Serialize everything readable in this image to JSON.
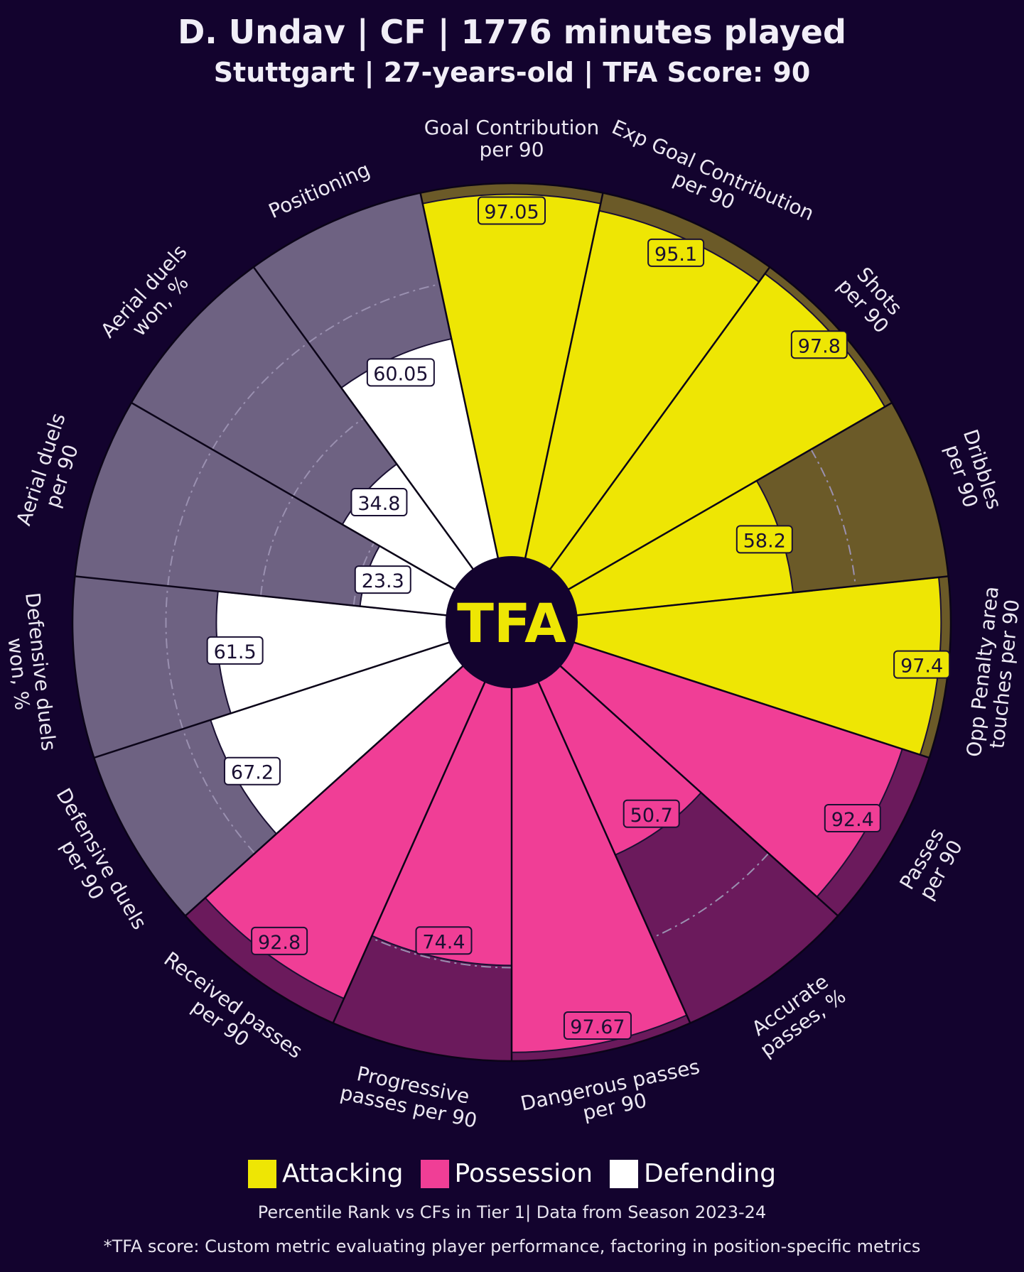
{
  "header": {
    "title": "D. Undav | CF | 1776 minutes played",
    "subtitle": "Stuttgart | 27-years-old | TFA Score: 90"
  },
  "logo_text": "TFA",
  "legend": [
    {
      "label": "Attacking",
      "color": "#eee604"
    },
    {
      "label": "Possession",
      "color": "#f03e96"
    },
    {
      "label": "Defending",
      "color": "#ffffff"
    }
  ],
  "footer": {
    "note": "Percentile Rank vs CFs in Tier 1| Data from Season 2023-24",
    "definition": "*TFA score: Custom metric evaluating player performance, factoring in position-specific metrics"
  },
  "colors": {
    "background": "#13032e",
    "attacking": "#eee604",
    "attacking_bg": "#6b5a28",
    "possession": "#f03e96",
    "possession_bg": "#6b1a5c",
    "defending": "#ffffff",
    "defending_bg": "#6e6282",
    "center": "#13032e"
  },
  "chart_data": {
    "type": "pizza",
    "scale": [
      0,
      100
    ],
    "metrics": [
      {
        "label": "Goal Contribution per 90",
        "lines": [
          "Goal Contribution",
          "per 90"
        ],
        "value": 97.05,
        "label_text": "97.05",
        "group": "attacking"
      },
      {
        "label": "Exp Goal Contribution per 90",
        "lines": [
          "Exp Goal Contribution",
          "per 90"
        ],
        "value": 95.1,
        "label_text": "95.1",
        "group": "attacking"
      },
      {
        "label": "Shots per 90",
        "lines": [
          "Shots",
          "per 90"
        ],
        "value": 97.8,
        "label_text": "97.8",
        "group": "attacking"
      },
      {
        "label": "Dribbles per 90",
        "lines": [
          "Dribbles",
          "per 90"
        ],
        "value": 58.2,
        "label_text": "58.2",
        "group": "attacking"
      },
      {
        "label": "Opp Penalty area touches per 90",
        "lines": [
          "Opp Penalty area",
          "touches per 90"
        ],
        "value": 97.4,
        "label_text": "97.4",
        "group": "attacking"
      },
      {
        "label": "Passes per 90",
        "lines": [
          "Passes",
          "per 90"
        ],
        "value": 92.4,
        "label_text": "92.4",
        "group": "possession"
      },
      {
        "label": "Accurate passes, %",
        "lines": [
          "Accurate",
          "passes, %"
        ],
        "value": 50.7,
        "label_text": "50.7",
        "group": "possession"
      },
      {
        "label": "Dangerous passes per 90",
        "lines": [
          "Dangerous passes",
          "per 90"
        ],
        "value": 97.67,
        "label_text": "97.67",
        "group": "possession"
      },
      {
        "label": "Progressive passes per 90",
        "lines": [
          "Progressive",
          "passes per 90"
        ],
        "value": 74.4,
        "label_text": "74.4",
        "group": "possession"
      },
      {
        "label": "Received passes per 90",
        "lines": [
          "Received passes",
          "per 90"
        ],
        "value": 92.8,
        "label_text": "92.8",
        "group": "possession"
      },
      {
        "label": "Defensive duels per 90",
        "lines": [
          "Defensive duels",
          "per 90"
        ],
        "value": 67.2,
        "label_text": "67.2",
        "group": "defending"
      },
      {
        "label": "Defensive duels won, %",
        "lines": [
          "Defensive duels",
          "won, %"
        ],
        "value": 61.5,
        "label_text": "61.5",
        "group": "defending"
      },
      {
        "label": "Aerial duels per 90",
        "lines": [
          "Aerial duels",
          "per 90"
        ],
        "value": 23.3,
        "label_text": "23.3",
        "group": "defending"
      },
      {
        "label": "Aerial duels won, %",
        "lines": [
          "Aerial duels",
          "won, %"
        ],
        "value": 34.8,
        "label_text": "34.8",
        "group": "defending"
      },
      {
        "label": "Positioning",
        "lines": [
          "Positioning"
        ],
        "value": 60.05,
        "label_text": "60.05",
        "group": "defending"
      }
    ]
  }
}
